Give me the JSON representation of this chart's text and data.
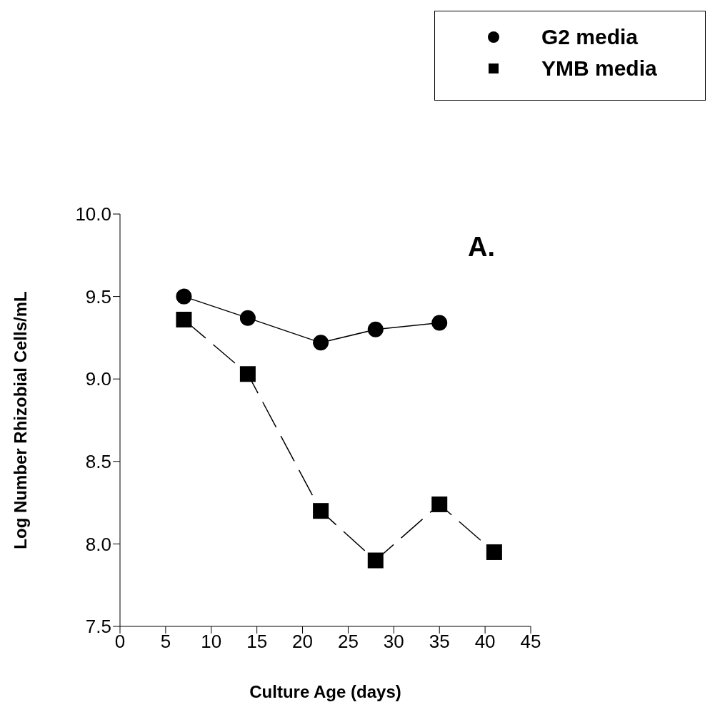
{
  "chart_data": {
    "type": "line",
    "xlabel": "Culture Age (days)",
    "ylabel": "Log Number Rhizobial Cells/mL",
    "annotations": [
      "A."
    ],
    "series": [
      {
        "name": "G2 media",
        "color": "#000000",
        "marker": "circle",
        "line_style": "solid",
        "x": [
          7,
          14,
          22,
          28,
          35
        ],
        "values": [
          9.5,
          9.37,
          9.22,
          9.3,
          9.34
        ]
      },
      {
        "name": "YMB media",
        "color": "#000000",
        "marker": "square",
        "line_style": "dashed",
        "x": [
          7,
          14,
          22,
          28,
          35,
          41
        ],
        "values": [
          9.36,
          9.03,
          8.2,
          7.9,
          8.24,
          7.95
        ]
      }
    ],
    "xlim": [
      0,
      45
    ],
    "xticks": [
      0,
      5,
      10,
      15,
      20,
      25,
      30,
      35,
      40,
      45
    ],
    "ylim": [
      7.5,
      10
    ],
    "yticks": [
      {
        "value": 7.5,
        "label": "7.5"
      },
      {
        "value": 8,
        "label": "8.0"
      },
      {
        "value": 8.5,
        "label": "8.5"
      },
      {
        "value": 9,
        "label": "9.0"
      },
      {
        "value": 9.5,
        "label": "9.5"
      },
      {
        "value": 10,
        "label": "10.0"
      }
    ],
    "grid": false,
    "legend": "top right"
  }
}
